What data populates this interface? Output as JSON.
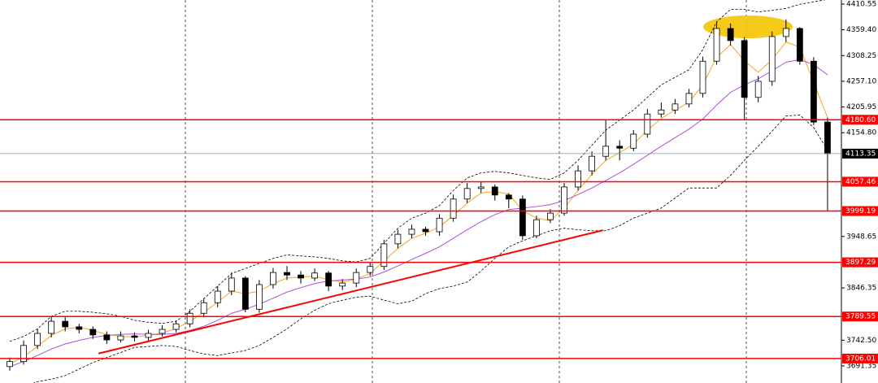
{
  "chart_data": {
    "type": "candlestick",
    "ylim": [
      3657.4,
      4418.6
    ],
    "yticks": [
      4410.55,
      {
        "value": 4359.4,
        "label": "4359.40"
      },
      4308.25,
      {
        "value": 4257.1,
        "label": "4257.10"
      },
      4205.95,
      {
        "value": 4154.8,
        "label": "4154.80"
      },
      3948.65,
      3846.35,
      {
        "value": 3742.5,
        "label": "3742.50"
      },
      3691.35
    ],
    "open": [
      3690,
      3700,
      3732,
      3756,
      3780,
      3769,
      3764,
      3753,
      3743,
      3751,
      3748,
      3756,
      3764,
      3775,
      3796,
      3817,
      3840,
      3866,
      3804,
      3853,
      3877,
      3872,
      3866,
      3876,
      3850,
      3856,
      3877,
      3889,
      3934,
      3953,
      3963,
      3958,
      3985,
      4023,
      4044,
      4047,
      4031,
      4023,
      3950,
      3982,
      3995,
      4047,
      4079,
      4108,
      4128,
      4124,
      4152,
      4192,
      4200,
      4212,
      4233,
      4297,
      4362,
      4338,
      4225,
      4257,
      4346,
      4362,
      4297,
      4176
    ],
    "high": [
      3708,
      3742,
      3765,
      3790,
      3788,
      3775,
      3770,
      3760,
      3760,
      3758,
      3763,
      3772,
      3782,
      3804,
      3826,
      3850,
      3877,
      3870,
      3862,
      3886,
      3890,
      3880,
      3885,
      3880,
      3864,
      3885,
      3897,
      3942,
      3962,
      3972,
      3968,
      3993,
      4032,
      4055,
      4057,
      4052,
      4035,
      4030,
      3990,
      4003,
      4055,
      4090,
      4118,
      4180,
      4140,
      4160,
      4202,
      4215,
      4222,
      4242,
      4306,
      4375,
      4372,
      4345,
      4268,
      4356,
      4380,
      4365,
      4305,
      4185
    ],
    "low": [
      3682,
      3694,
      3725,
      3748,
      3760,
      3756,
      3745,
      3735,
      3738,
      3740,
      3742,
      3750,
      3758,
      3768,
      3788,
      3808,
      3832,
      3798,
      3797,
      3845,
      3862,
      3855,
      3860,
      3840,
      3842,
      3848,
      3870,
      3882,
      3925,
      3945,
      3950,
      3950,
      3978,
      4015,
      4035,
      4020,
      4005,
      3942,
      3945,
      3975,
      3990,
      4040,
      4070,
      4100,
      4100,
      4118,
      4145,
      4185,
      4192,
      4205,
      4225,
      4290,
      4328,
      4180,
      4215,
      4248,
      4335,
      4290,
      4170,
      4000
    ],
    "close": [
      3700,
      3732,
      3756,
      3780,
      3769,
      3764,
      3753,
      3743,
      3751,
      3748,
      3756,
      3764,
      3775,
      3796,
      3817,
      3840,
      3866,
      3804,
      3853,
      3877,
      3872,
      3866,
      3876,
      3850,
      3856,
      3877,
      3889,
      3934,
      3953,
      3963,
      3958,
      3985,
      4023,
      4044,
      4047,
      4031,
      4023,
      3950,
      3982,
      3995,
      4047,
      4079,
      4108,
      4128,
      4124,
      4152,
      4192,
      4200,
      4212,
      4233,
      4297,
      4362,
      4338,
      4225,
      4257,
      4346,
      4362,
      4297,
      4176,
      4113.35
    ],
    "series": [
      {
        "color": "#f5a623",
        "style": "solid",
        "values": [
          3695,
          3710,
          3730,
          3752,
          3765,
          3768,
          3762,
          3754,
          3750,
          3749,
          3752,
          3757,
          3766,
          3780,
          3798,
          3818,
          3840,
          3835,
          3840,
          3855,
          3866,
          3868,
          3870,
          3862,
          3858,
          3864,
          3875,
          3900,
          3925,
          3945,
          3955,
          3968,
          3990,
          4015,
          4035,
          4038,
          4033,
          4000,
          3985,
          3980,
          4005,
          4040,
          4072,
          4100,
          4115,
          4132,
          4160,
          4183,
          4200,
          4215,
          4250,
          4305,
          4330,
          4298,
          4275,
          4300,
          4335,
          4325,
          4255,
          4185
        ]
      },
      {
        "color": "#b04fd8",
        "style": "solid",
        "values": [
          3690,
          3700,
          3712,
          3725,
          3735,
          3742,
          3748,
          3752,
          3754,
          3755,
          3754,
          3754,
          3756,
          3762,
          3770,
          3782,
          3796,
          3804,
          3814,
          3826,
          3838,
          3847,
          3855,
          3860,
          3862,
          3864,
          3868,
          3878,
          3890,
          3903,
          3915,
          3928,
          3945,
          3962,
          3978,
          3992,
          4002,
          4005,
          4008,
          4012,
          4020,
          4032,
          4045,
          4060,
          4075,
          4092,
          4110,
          4128,
          4145,
          4162,
          4182,
          4210,
          4235,
          4250,
          4262,
          4278,
          4295,
          4300,
          4290,
          4270
        ]
      },
      {
        "color": "#000000",
        "style": "dashed",
        "values": [
          3740,
          3750,
          3765,
          3790,
          3800,
          3800,
          3798,
          3795,
          3790,
          3782,
          3778,
          3776,
          3780,
          3800,
          3825,
          3850,
          3875,
          3885,
          3895,
          3905,
          3912,
          3910,
          3908,
          3905,
          3900,
          3898,
          3905,
          3935,
          3965,
          3985,
          3995,
          4010,
          4040,
          4065,
          4075,
          4078,
          4075,
          4070,
          4065,
          4062,
          4075,
          4100,
          4130,
          4160,
          4180,
          4200,
          4225,
          4250,
          4265,
          4280,
          4320,
          4375,
          4400,
          4400,
          4395,
          4398,
          4402,
          4410,
          4415,
          4420
        ]
      },
      {
        "color": "#000000",
        "style": "dashed",
        "values": [
          3640,
          3650,
          3660,
          3665,
          3672,
          3685,
          3698,
          3708,
          3718,
          3728,
          3730,
          3732,
          3730,
          3722,
          3715,
          3712,
          3717,
          3722,
          3732,
          3748,
          3765,
          3785,
          3802,
          3815,
          3822,
          3828,
          3830,
          3822,
          3815,
          3820,
          3835,
          3845,
          3850,
          3858,
          3880,
          3905,
          3928,
          3940,
          3950,
          3960,
          3965,
          3962,
          3960,
          3960,
          3970,
          3985,
          3995,
          4005,
          4025,
          4045,
          4045,
          4045,
          4070,
          4100,
          4128,
          4158,
          4188,
          4190,
          4165,
          4120
        ]
      }
    ],
    "levels": {
      "color": "#ff0000",
      "values": [
        {
          "value": 4180.6,
          "label": "4180.60"
        },
        4057.46,
        3999.19,
        3897.29,
        3789.55,
        3706.01
      ]
    },
    "current_price": 4113.35,
    "trendline": {
      "color": "#ff0000",
      "x": [
        6.4,
        42.8
      ],
      "y": [
        3716,
        3961
      ]
    }
  }
}
